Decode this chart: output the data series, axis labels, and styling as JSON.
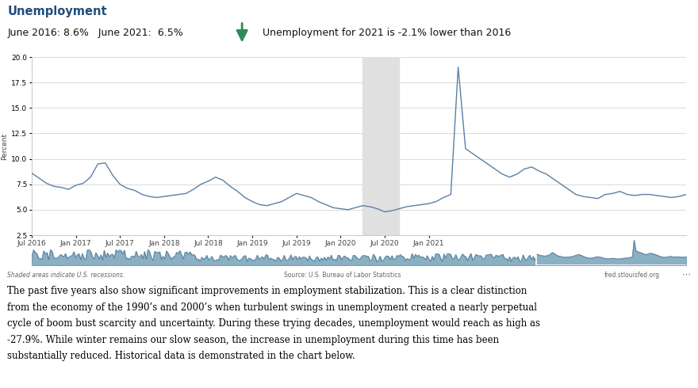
{
  "title": "Unemployment",
  "subtitle_left": "June 2016: 8.6%   June 2021:  6.5%",
  "subtitle_right": "Unemployment for 2021 is -2.1% lower than 2016",
  "ylabel": "Percent",
  "source_left": "Shaded areas indicate U.S. recessions.",
  "source_center": "Source: U.S. Bureau of Labor Statistics",
  "source_right": "fred.stlouisfed.org",
  "body_text": "The past five years also show significant improvements in employment stabilization. This is a clear distinction\nfrom the economy of the 1990’s and 2000’s when turbulent swings in unemployment created a nearly perpetual\ncycle of boom bust scarcity and uncertainty. During these trying decades, unemployment would reach as high as\n-27.9%. While winter remains our slow season, the increase in unemployment during this time has been\nsubstantially reduced. Historical data is demonstrated in the chart below.",
  "ylim": [
    2.5,
    20.0
  ],
  "yticks": [
    2.5,
    5.0,
    7.5,
    10.0,
    12.5,
    15.0,
    17.5,
    20.0
  ],
  "recession_start": 45,
  "recession_end": 50,
  "line_color": "#5b7fa6",
  "recession_color": "#e0e0e0",
  "chart_bg": "#ffffff",
  "chart_border": "#cccccc",
  "title_color": "#1f4e79",
  "body_color": "#000000",
  "arrow_color": "#2e8b57",
  "x_tick_positions": [
    0,
    6,
    12,
    18,
    24,
    30,
    36,
    42,
    48,
    54
  ],
  "x_tick_labels": [
    "Jul 2016",
    "Jan 2017",
    "Jul 2017",
    "Jan 2018",
    "Jul 2018",
    "Jan 2019",
    "Jul 2019",
    "Jan 2020",
    "Jul 2020",
    "Jan 2021"
  ],
  "unemployment_data": [
    8.6,
    8.1,
    7.6,
    7.3,
    7.2,
    7.0,
    7.4,
    7.6,
    8.2,
    9.5,
    9.6,
    8.4,
    7.5,
    7.1,
    6.9,
    6.5,
    6.3,
    6.2,
    6.3,
    6.4,
    6.5,
    6.6,
    7.0,
    7.5,
    7.8,
    8.2,
    7.9,
    7.3,
    6.8,
    6.2,
    5.8,
    5.5,
    5.4,
    5.6,
    5.8,
    6.2,
    6.6,
    6.4,
    6.2,
    5.8,
    5.5,
    5.2,
    5.1,
    5.0,
    5.2,
    5.4,
    5.3,
    5.1,
    4.8,
    4.9,
    5.1,
    5.3,
    5.4,
    5.5,
    5.6,
    5.8,
    6.2,
    6.5,
    19.0,
    11.0,
    10.5,
    10.0,
    9.5,
    9.0,
    8.5,
    8.2,
    8.5,
    9.0,
    9.2,
    8.8,
    8.5,
    8.0,
    7.5,
    7.0,
    6.5,
    6.3,
    6.2,
    6.1,
    6.5,
    6.6,
    6.8,
    6.5,
    6.4,
    6.5,
    6.5,
    6.4,
    6.3,
    6.2,
    6.3,
    6.5
  ]
}
